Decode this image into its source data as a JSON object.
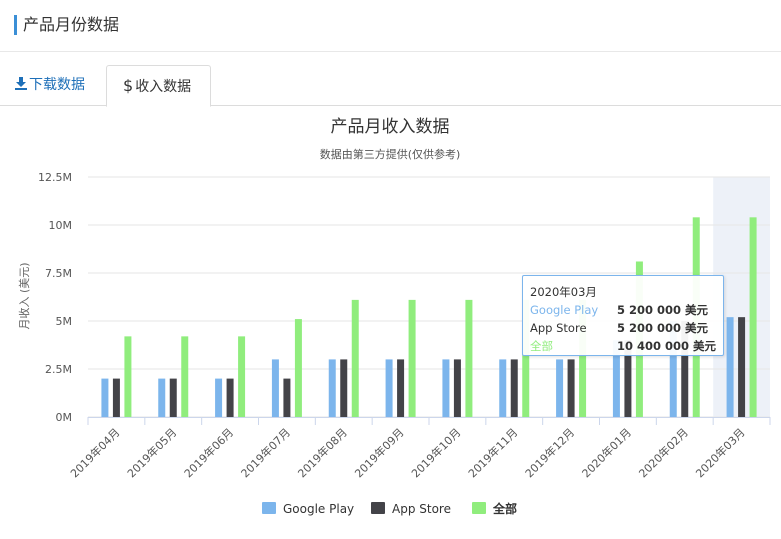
{
  "section": {
    "title": "产品月份数据"
  },
  "tabs": [
    {
      "label": "下载数据",
      "icon": "download-icon",
      "active": false
    },
    {
      "label": "收入数据",
      "icon": "dollar-icon",
      "active": true
    }
  ],
  "colors": {
    "google_play": "#7cb5ec",
    "app_store": "#434348",
    "total": "#90ed7d",
    "accent": "#3b8fd6"
  },
  "chart_data": {
    "type": "bar",
    "title": "产品月收入数据",
    "subtitle": "数据由第三方提供(仅供参考)",
    "ylabel": "月收入 (美元)",
    "xlabel": "",
    "ylim": [
      0,
      12500000
    ],
    "yticks": [
      0,
      2500000,
      5000000,
      7500000,
      10000000,
      12500000
    ],
    "ytick_labels": [
      "0M",
      "2.5M",
      "5M",
      "7.5M",
      "10M",
      "12.5M"
    ],
    "categories": [
      "2019年04月",
      "2019年05月",
      "2019年06月",
      "2019年07月",
      "2019年08月",
      "2019年09月",
      "2019年10月",
      "2019年11月",
      "2019年12月",
      "2020年01月",
      "2020年02月",
      "2020年03月"
    ],
    "series": [
      {
        "name": "Google Play",
        "values": [
          2000000,
          2000000,
          2000000,
          3000000,
          3000000,
          3000000,
          3000000,
          3000000,
          3000000,
          4000000,
          5000000,
          5200000
        ]
      },
      {
        "name": "App Store",
        "values": [
          2000000,
          2000000,
          2000000,
          2000000,
          3000000,
          3000000,
          3000000,
          3000000,
          3000000,
          4000000,
          5000000,
          5200000
        ]
      },
      {
        "name": "全部",
        "values": [
          4200000,
          4200000,
          4200000,
          5100000,
          6100000,
          6100000,
          6100000,
          6100000,
          6100000,
          8100000,
          10400000,
          10400000
        ]
      }
    ],
    "legend_position": "bottom-center",
    "grid": true,
    "highlighted_category": "2020年03月"
  },
  "tooltip": {
    "header": "2020年03月",
    "rows": [
      {
        "label": "Google Play",
        "value": "5 200 000 美元"
      },
      {
        "label": "App Store",
        "value": "5 200 000 美元"
      },
      {
        "label": "全部",
        "value": "10 400 000 美元"
      }
    ]
  }
}
